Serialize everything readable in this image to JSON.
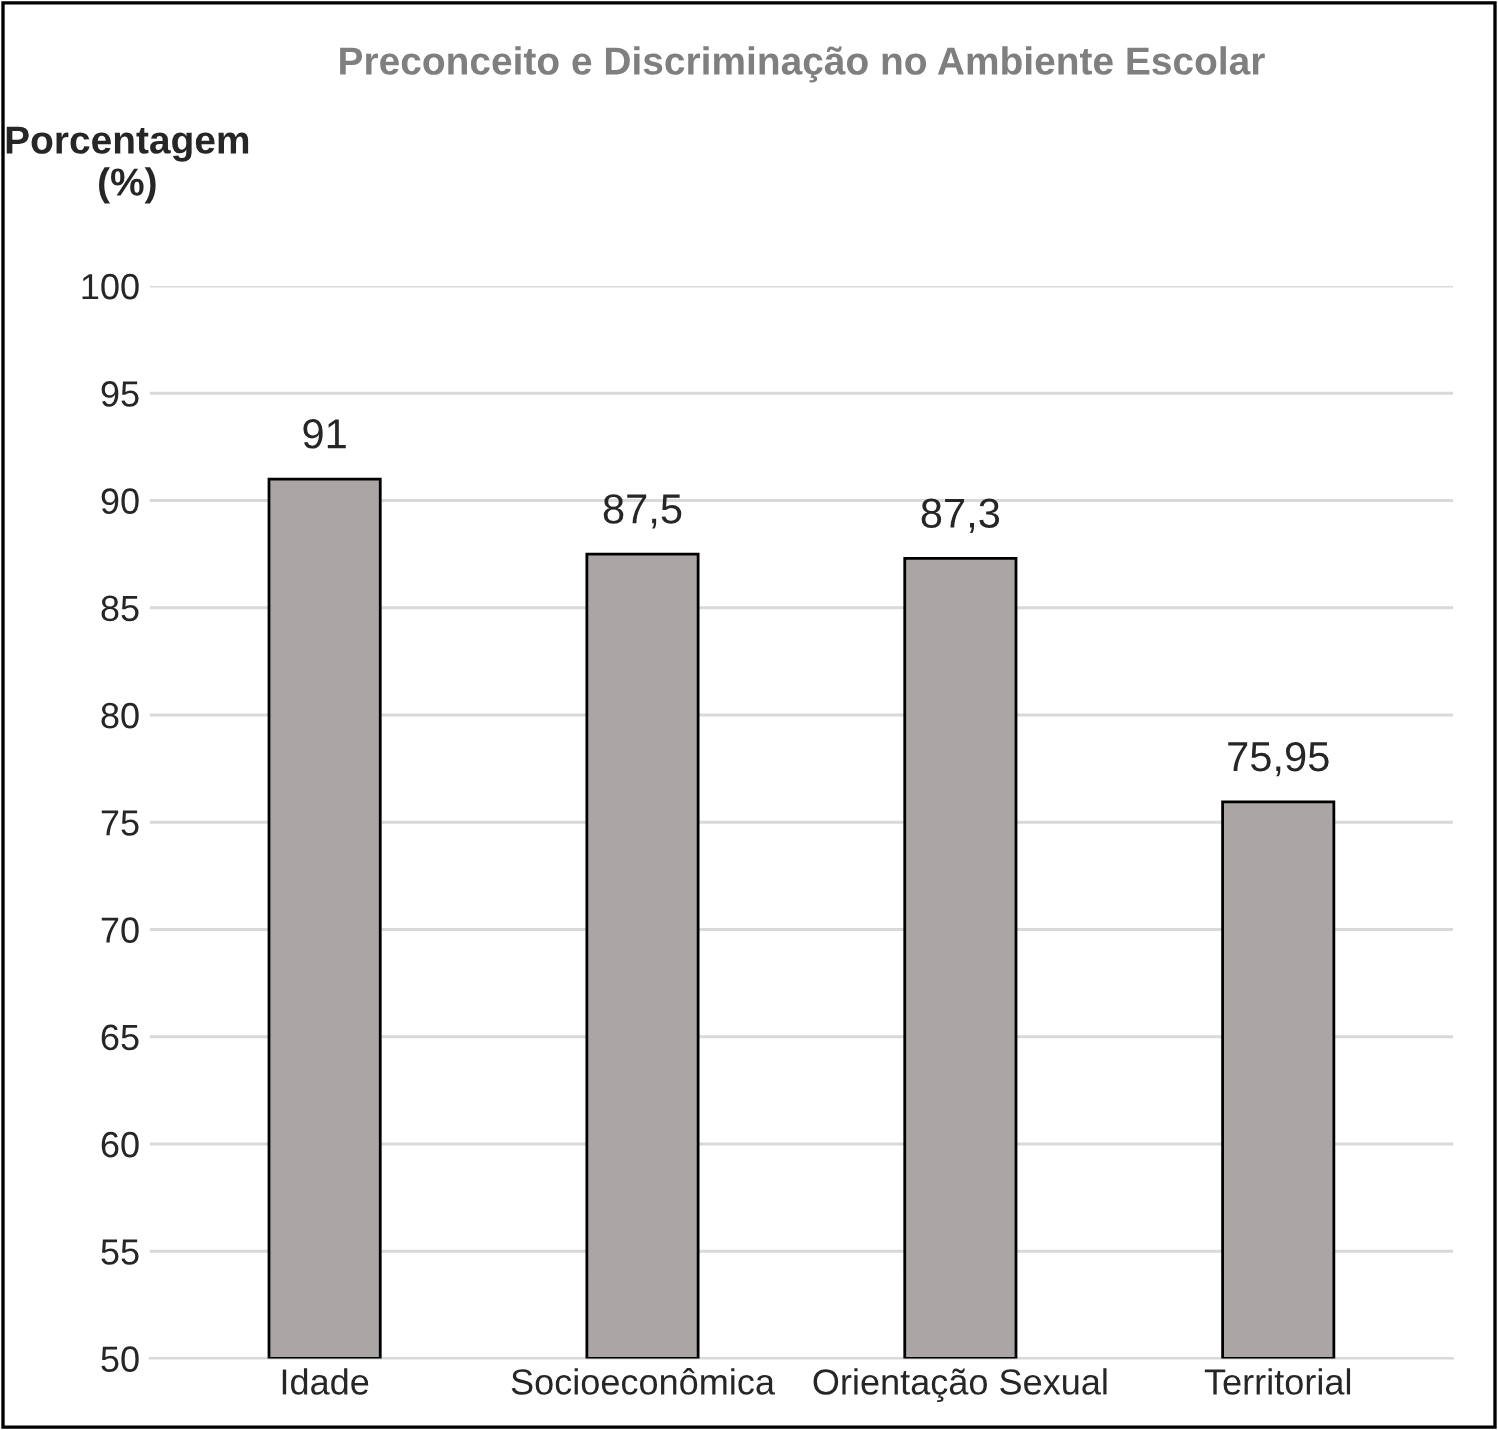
{
  "chart_data": {
    "type": "bar",
    "title": "Preconceito e Discriminação no Ambiente Escolar",
    "ylabel": "Porcentagem (%)",
    "categories": [
      "Idade",
      "Socioeconômica",
      "Orientação Sexual",
      "Territorial"
    ],
    "values": [
      91,
      87.5,
      87.3,
      75.95
    ],
    "value_labels": [
      "91",
      "87,5",
      "87,3",
      "75,95"
    ],
    "color": "#aba6a6",
    "ylim": [
      50,
      100
    ],
    "yticks": [
      50,
      55,
      60,
      65,
      70,
      75,
      80,
      85,
      90,
      95,
      100
    ],
    "grid": "y"
  }
}
